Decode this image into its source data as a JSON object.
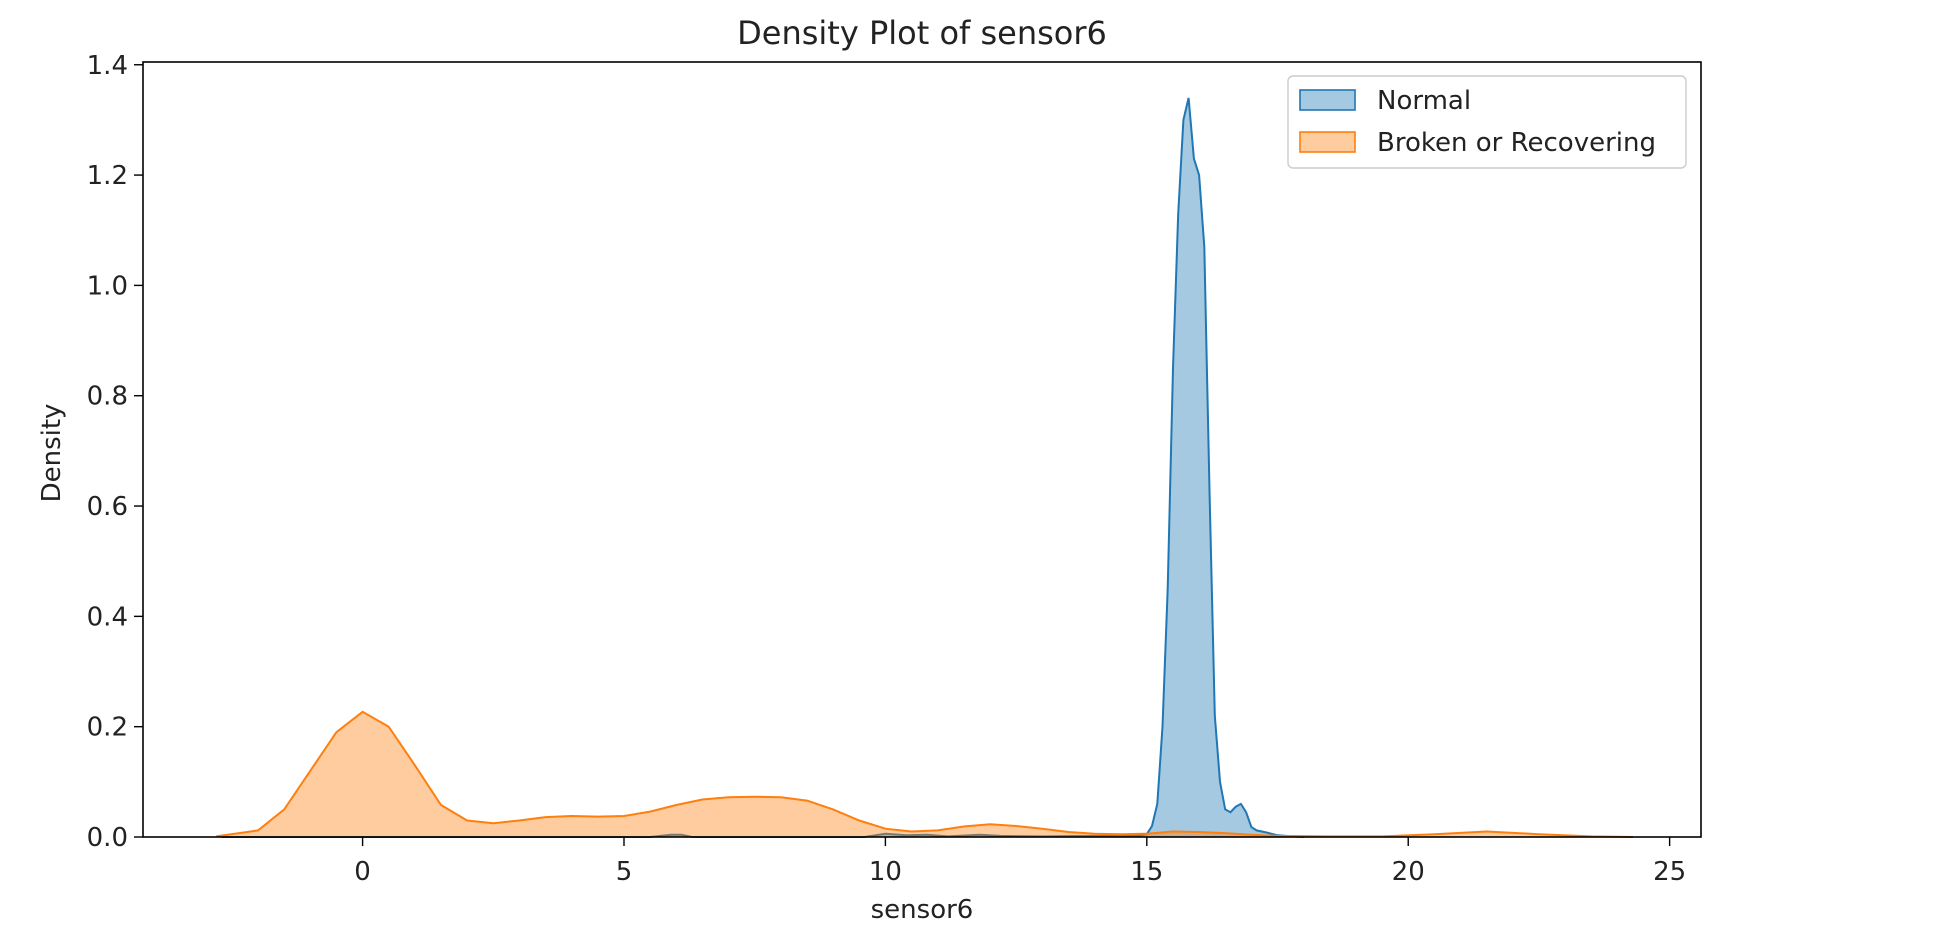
{
  "chart_data": {
    "type": "area",
    "title": "Density Plot of sensor6",
    "xlabel": "sensor6",
    "ylabel": "Density",
    "xlim": [
      -4.2,
      25.6
    ],
    "ylim": [
      0,
      1.405
    ],
    "xticks": [
      0,
      5,
      10,
      15,
      20,
      25
    ],
    "yticks": [
      0.0,
      0.2,
      0.4,
      0.6,
      0.8,
      1.0,
      1.2,
      1.4
    ],
    "xtick_labels": [
      "0",
      "5",
      "10",
      "15",
      "20",
      "25"
    ],
    "ytick_labels": [
      "0.0",
      "0.2",
      "0.4",
      "0.6",
      "0.8",
      "1.0",
      "1.2",
      "1.4"
    ],
    "grid": false,
    "legend_position": "top-right",
    "series": [
      {
        "name": "Normal",
        "color": "#1f77b4",
        "points": [
          [
            -2.7,
            0
          ],
          [
            5.5,
            0
          ],
          [
            5.9,
            0.004
          ],
          [
            6.1,
            0.004
          ],
          [
            6.3,
            0
          ],
          [
            9.6,
            0
          ],
          [
            10.0,
            0.006
          ],
          [
            10.4,
            0.003
          ],
          [
            10.8,
            0.004
          ],
          [
            11.2,
            0.001
          ],
          [
            11.8,
            0.004
          ],
          [
            12.2,
            0.002
          ],
          [
            13.0,
            0.001
          ],
          [
            14.0,
            0.002
          ],
          [
            14.8,
            0.002
          ],
          [
            15.0,
            0.005
          ],
          [
            15.1,
            0.02
          ],
          [
            15.2,
            0.06
          ],
          [
            15.3,
            0.2
          ],
          [
            15.4,
            0.45
          ],
          [
            15.5,
            0.85
          ],
          [
            15.6,
            1.13
          ],
          [
            15.7,
            1.3
          ],
          [
            15.8,
            1.34
          ],
          [
            15.9,
            1.23
          ],
          [
            16.0,
            1.2
          ],
          [
            16.1,
            1.07
          ],
          [
            16.2,
            0.62
          ],
          [
            16.3,
            0.22
          ],
          [
            16.4,
            0.1
          ],
          [
            16.5,
            0.05
          ],
          [
            16.6,
            0.045
          ],
          [
            16.7,
            0.055
          ],
          [
            16.8,
            0.06
          ],
          [
            16.9,
            0.045
          ],
          [
            17.0,
            0.018
          ],
          [
            17.1,
            0.012
          ],
          [
            17.3,
            0.008
          ],
          [
            17.5,
            0.003
          ],
          [
            17.8,
            0.001
          ],
          [
            18.0,
            0
          ]
        ]
      },
      {
        "name": "Broken or Recovering",
        "color": "#ff7f0e",
        "points": [
          [
            -2.8,
            0.001
          ],
          [
            -2.0,
            0.012
          ],
          [
            -1.5,
            0.05
          ],
          [
            -1.0,
            0.12
          ],
          [
            -0.5,
            0.19
          ],
          [
            0.0,
            0.227
          ],
          [
            0.5,
            0.2
          ],
          [
            1.0,
            0.13
          ],
          [
            1.5,
            0.058
          ],
          [
            2.0,
            0.03
          ],
          [
            2.5,
            0.025
          ],
          [
            3.0,
            0.03
          ],
          [
            3.5,
            0.036
          ],
          [
            4.0,
            0.038
          ],
          [
            4.5,
            0.037
          ],
          [
            5.0,
            0.038
          ],
          [
            5.5,
            0.046
          ],
          [
            6.0,
            0.058
          ],
          [
            6.5,
            0.068
          ],
          [
            7.0,
            0.072
          ],
          [
            7.5,
            0.073
          ],
          [
            8.0,
            0.072
          ],
          [
            8.5,
            0.066
          ],
          [
            9.0,
            0.05
          ],
          [
            9.5,
            0.03
          ],
          [
            10.0,
            0.015
          ],
          [
            10.5,
            0.01
          ],
          [
            11.0,
            0.012
          ],
          [
            11.5,
            0.019
          ],
          [
            12.0,
            0.023
          ],
          [
            12.5,
            0.02
          ],
          [
            13.0,
            0.015
          ],
          [
            13.5,
            0.009
          ],
          [
            14.0,
            0.006
          ],
          [
            14.5,
            0.005
          ],
          [
            15.0,
            0.006
          ],
          [
            15.5,
            0.01
          ],
          [
            16.0,
            0.009
          ],
          [
            16.5,
            0.007
          ],
          [
            17.0,
            0.004
          ],
          [
            17.5,
            0.002
          ],
          [
            18.5,
            0.001
          ],
          [
            19.5,
            0.001
          ],
          [
            20.5,
            0.005
          ],
          [
            21.5,
            0.01
          ],
          [
            22.5,
            0.005
          ],
          [
            23.5,
            0.001
          ],
          [
            24.3,
            0.0
          ]
        ]
      }
    ]
  }
}
